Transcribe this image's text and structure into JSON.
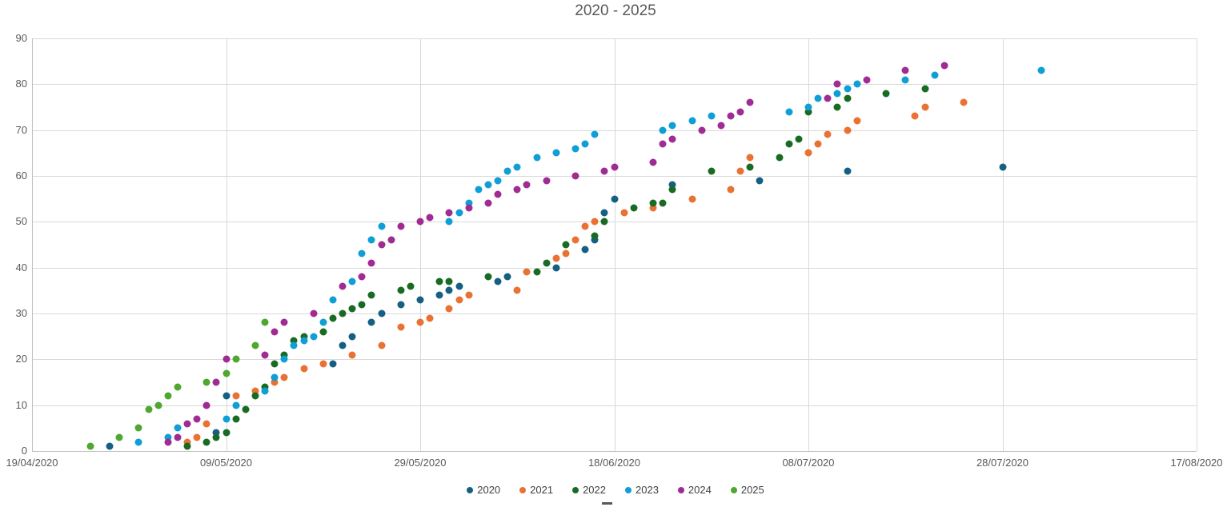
{
  "title": "2020 - 2025",
  "chart_data": {
    "type": "scatter",
    "title": "2020 - 2025",
    "x_axis": {
      "kind": "date",
      "tick_labels": [
        "19/04/2020",
        "09/05/2020",
        "29/05/2020",
        "18/06/2020",
        "08/07/2020",
        "28/07/2020",
        "17/08/2020"
      ],
      "tick_days": [
        0,
        20,
        40,
        60,
        80,
        100,
        120
      ],
      "range_days": [
        0,
        120
      ],
      "grid": true
    },
    "y_axis": {
      "min": 0,
      "max": 90,
      "step": 10,
      "tick_labels": [
        "0",
        "10",
        "20",
        "30",
        "40",
        "50",
        "60",
        "70",
        "80",
        "90"
      ],
      "grid": true
    },
    "legend": {
      "position": "bottom",
      "entries": [
        "2020",
        "2021",
        "2022",
        "2023",
        "2024",
        "2025"
      ]
    },
    "point_format": "[date dd/mm, day offset from 19/04/2020, value]",
    "series": [
      {
        "name": "2020",
        "color": "#156082",
        "points": [
          [
            "27/04",
            8,
            1
          ],
          [
            "08/05",
            19,
            4
          ],
          [
            "09/05",
            20,
            12
          ],
          [
            "20/05",
            31,
            19
          ],
          [
            "21/05",
            32,
            23
          ],
          [
            "22/05",
            33,
            25
          ],
          [
            "24/05",
            35,
            28
          ],
          [
            "25/05",
            36,
            30
          ],
          [
            "27/05",
            38,
            32
          ],
          [
            "29/05",
            40,
            33
          ],
          [
            "31/05",
            42,
            34
          ],
          [
            "01/06",
            43,
            35
          ],
          [
            "02/06",
            44,
            36
          ],
          [
            "06/06",
            48,
            37
          ],
          [
            "07/06",
            49,
            38
          ],
          [
            "12/06",
            54,
            40
          ],
          [
            "15/06",
            57,
            44
          ],
          [
            "16/06",
            58,
            46
          ],
          [
            "17/06",
            59,
            52
          ],
          [
            "18/06",
            60,
            55
          ],
          [
            "24/06",
            66,
            58
          ],
          [
            "03/07",
            75,
            59
          ],
          [
            "12/07",
            84,
            61
          ],
          [
            "28/07",
            100,
            62
          ]
        ]
      },
      {
        "name": "2021",
        "color": "#E97132",
        "points": [
          [
            "05/05",
            16,
            2
          ],
          [
            "06/05",
            17,
            3
          ],
          [
            "07/05",
            18,
            6
          ],
          [
            "10/05",
            21,
            12
          ],
          [
            "12/05",
            23,
            13
          ],
          [
            "14/05",
            25,
            15
          ],
          [
            "15/05",
            26,
            16
          ],
          [
            "17/05",
            28,
            18
          ],
          [
            "19/05",
            30,
            19
          ],
          [
            "22/05",
            33,
            21
          ],
          [
            "25/05",
            36,
            23
          ],
          [
            "27/05",
            38,
            27
          ],
          [
            "29/05",
            40,
            28
          ],
          [
            "30/05",
            41,
            29
          ],
          [
            "01/06",
            43,
            31
          ],
          [
            "02/06",
            44,
            33
          ],
          [
            "03/06",
            45,
            34
          ],
          [
            "08/06",
            50,
            35
          ],
          [
            "09/06",
            51,
            39
          ],
          [
            "12/06",
            54,
            42
          ],
          [
            "13/06",
            55,
            43
          ],
          [
            "14/06",
            56,
            46
          ],
          [
            "15/06",
            57,
            49
          ],
          [
            "16/06",
            58,
            50
          ],
          [
            "19/06",
            61,
            52
          ],
          [
            "22/06",
            64,
            53
          ],
          [
            "26/06",
            68,
            55
          ],
          [
            "30/06",
            72,
            57
          ],
          [
            "01/07",
            73,
            61
          ],
          [
            "02/07",
            74,
            64
          ],
          [
            "08/07",
            80,
            65
          ],
          [
            "09/07",
            81,
            67
          ],
          [
            "10/07",
            82,
            69
          ],
          [
            "12/07",
            84,
            70
          ],
          [
            "13/07",
            85,
            72
          ],
          [
            "19/07",
            91,
            73
          ],
          [
            "20/07",
            92,
            75
          ],
          [
            "24/07",
            96,
            76
          ]
        ]
      },
      {
        "name": "2022",
        "color": "#196B24",
        "points": [
          [
            "05/05",
            16,
            1
          ],
          [
            "07/05",
            18,
            2
          ],
          [
            "08/05",
            19,
            3
          ],
          [
            "09/05",
            20,
            4
          ],
          [
            "10/05",
            21,
            7
          ],
          [
            "11/05",
            22,
            9
          ],
          [
            "12/05",
            23,
            12
          ],
          [
            "13/05",
            24,
            14
          ],
          [
            "14/05",
            25,
            19
          ],
          [
            "15/05",
            26,
            21
          ],
          [
            "16/05",
            27,
            24
          ],
          [
            "17/05",
            28,
            25
          ],
          [
            "19/05",
            30,
            26
          ],
          [
            "20/05",
            31,
            29
          ],
          [
            "21/05",
            32,
            30
          ],
          [
            "22/05",
            33,
            31
          ],
          [
            "23/05",
            34,
            32
          ],
          [
            "24/05",
            35,
            34
          ],
          [
            "27/05",
            38,
            35
          ],
          [
            "28/05",
            39,
            36
          ],
          [
            "31/05",
            42,
            37
          ],
          [
            "01/06",
            43,
            37
          ],
          [
            "05/06",
            47,
            38
          ],
          [
            "10/06",
            52,
            39
          ],
          [
            "11/06",
            53,
            41
          ],
          [
            "13/06",
            55,
            45
          ],
          [
            "16/06",
            58,
            47
          ],
          [
            "17/06",
            59,
            50
          ],
          [
            "20/06",
            62,
            53
          ],
          [
            "22/06",
            64,
            54
          ],
          [
            "23/06",
            65,
            54
          ],
          [
            "24/06",
            66,
            57
          ],
          [
            "28/06",
            70,
            61
          ],
          [
            "02/07",
            74,
            62
          ],
          [
            "05/07",
            77,
            64
          ],
          [
            "06/07",
            78,
            67
          ],
          [
            "07/07",
            79,
            68
          ],
          [
            "08/07",
            80,
            74
          ],
          [
            "11/07",
            83,
            75
          ],
          [
            "12/07",
            84,
            77
          ],
          [
            "16/07",
            88,
            78
          ],
          [
            "20/07",
            92,
            79
          ]
        ]
      },
      {
        "name": "2023",
        "color": "#0F9ED5",
        "points": [
          [
            "30/04",
            11,
            2
          ],
          [
            "03/05",
            14,
            3
          ],
          [
            "04/05",
            15,
            5
          ],
          [
            "09/05",
            20,
            7
          ],
          [
            "10/05",
            21,
            10
          ],
          [
            "13/05",
            24,
            13
          ],
          [
            "14/05",
            25,
            16
          ],
          [
            "15/05",
            26,
            20
          ],
          [
            "16/05",
            27,
            23
          ],
          [
            "17/05",
            28,
            24
          ],
          [
            "18/05",
            29,
            25
          ],
          [
            "19/05",
            30,
            28
          ],
          [
            "20/05",
            31,
            33
          ],
          [
            "22/05",
            33,
            37
          ],
          [
            "23/05",
            34,
            43
          ],
          [
            "24/05",
            35,
            46
          ],
          [
            "25/05",
            36,
            49
          ],
          [
            "01/06",
            43,
            50
          ],
          [
            "02/06",
            44,
            52
          ],
          [
            "03/06",
            45,
            54
          ],
          [
            "04/06",
            46,
            57
          ],
          [
            "05/06",
            47,
            58
          ],
          [
            "06/06",
            48,
            59
          ],
          [
            "07/06",
            49,
            61
          ],
          [
            "08/06",
            50,
            62
          ],
          [
            "10/06",
            52,
            64
          ],
          [
            "12/06",
            54,
            65
          ],
          [
            "14/06",
            56,
            66
          ],
          [
            "15/06",
            57,
            67
          ],
          [
            "16/06",
            58,
            69
          ],
          [
            "23/06",
            65,
            70
          ],
          [
            "24/06",
            66,
            71
          ],
          [
            "26/06",
            68,
            72
          ],
          [
            "28/06",
            70,
            73
          ],
          [
            "06/07",
            78,
            74
          ],
          [
            "08/07",
            80,
            75
          ],
          [
            "09/07",
            81,
            77
          ],
          [
            "11/07",
            83,
            78
          ],
          [
            "12/07",
            84,
            79
          ],
          [
            "13/07",
            85,
            80
          ],
          [
            "18/07",
            90,
            81
          ],
          [
            "21/07",
            93,
            82
          ],
          [
            "01/08",
            104,
            83
          ]
        ]
      },
      {
        "name": "2024",
        "color": "#A02B93",
        "points": [
          [
            "03/05",
            14,
            2
          ],
          [
            "04/05",
            15,
            3
          ],
          [
            "05/05",
            16,
            6
          ],
          [
            "06/05",
            17,
            7
          ],
          [
            "07/05",
            18,
            10
          ],
          [
            "08/05",
            19,
            15
          ],
          [
            "09/05",
            20,
            20
          ],
          [
            "13/05",
            24,
            21
          ],
          [
            "14/05",
            25,
            26
          ],
          [
            "15/05",
            26,
            28
          ],
          [
            "18/05",
            29,
            30
          ],
          [
            "21/05",
            32,
            36
          ],
          [
            "23/05",
            34,
            38
          ],
          [
            "24/05",
            35,
            41
          ],
          [
            "25/05",
            36,
            45
          ],
          [
            "26/05",
            37,
            46
          ],
          [
            "27/05",
            38,
            49
          ],
          [
            "29/05",
            40,
            50
          ],
          [
            "30/05",
            41,
            51
          ],
          [
            "01/06",
            43,
            52
          ],
          [
            "03/06",
            45,
            53
          ],
          [
            "05/06",
            47,
            54
          ],
          [
            "06/06",
            48,
            56
          ],
          [
            "08/06",
            50,
            57
          ],
          [
            "09/06",
            51,
            58
          ],
          [
            "11/06",
            53,
            59
          ],
          [
            "14/06",
            56,
            60
          ],
          [
            "17/06",
            59,
            61
          ],
          [
            "18/06",
            60,
            62
          ],
          [
            "22/06",
            64,
            63
          ],
          [
            "23/06",
            65,
            67
          ],
          [
            "24/06",
            66,
            68
          ],
          [
            "27/06",
            69,
            70
          ],
          [
            "29/06",
            71,
            71
          ],
          [
            "30/06",
            72,
            73
          ],
          [
            "01/07",
            73,
            74
          ],
          [
            "02/07",
            74,
            76
          ],
          [
            "10/07",
            82,
            77
          ],
          [
            "11/07",
            83,
            80
          ],
          [
            "14/07",
            86,
            81
          ],
          [
            "18/07",
            90,
            83
          ],
          [
            "22/07",
            94,
            84
          ]
        ]
      },
      {
        "name": "2025",
        "color": "#4EA72E",
        "points": [
          [
            "25/04",
            6,
            1
          ],
          [
            "28/04",
            9,
            3
          ],
          [
            "30/04",
            11,
            5
          ],
          [
            "01/05",
            12,
            9
          ],
          [
            "02/05",
            13,
            10
          ],
          [
            "03/05",
            14,
            12
          ],
          [
            "04/05",
            15,
            14
          ],
          [
            "07/05",
            18,
            15
          ],
          [
            "09/05",
            20,
            17
          ],
          [
            "10/05",
            21,
            20
          ],
          [
            "12/05",
            23,
            23
          ],
          [
            "13/05",
            24,
            28
          ]
        ]
      }
    ]
  }
}
